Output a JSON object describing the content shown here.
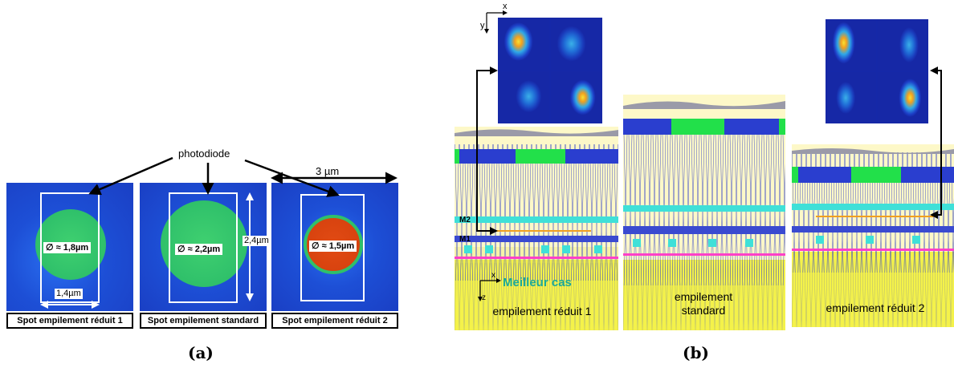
{
  "panel_a": {
    "sublabel": "(a)",
    "photodiode_label": "photodiode",
    "width_label": "3 µm",
    "spots": [
      {
        "caption": "Spot empilement réduit 1",
        "diameter": "∅ ≈ 1,8µm",
        "color": "#2fc06a"
      },
      {
        "caption": "Spot empilement standard",
        "diameter": "∅ ≈ 2,2µm",
        "color": "#2fc06a"
      },
      {
        "caption": "Spot empilement réduit 2",
        "diameter": "∅ ≈ 1,5µm",
        "color": "#d8430f"
      }
    ],
    "photodiode_width": "1,4µm",
    "photodiode_height": "2,4µm"
  },
  "panel_b": {
    "sublabel": "(b)",
    "axis_x": "x",
    "axis_y": "y",
    "axis_z": "z",
    "best_case": "Meilleur cas",
    "metal_m2": "M2",
    "metal_m1": "M1",
    "stacks": [
      {
        "label": "empilement réduit 1"
      },
      {
        "label": "empilement standard"
      },
      {
        "label": "empilement réduit 2"
      }
    ]
  },
  "colors": {
    "background_blue": "#1b4fd0",
    "accent_green": "#22e04a",
    "cyan": "#3fe0d8",
    "substrate_yellow": "#f4f24a",
    "magenta": "#ff40c8"
  }
}
